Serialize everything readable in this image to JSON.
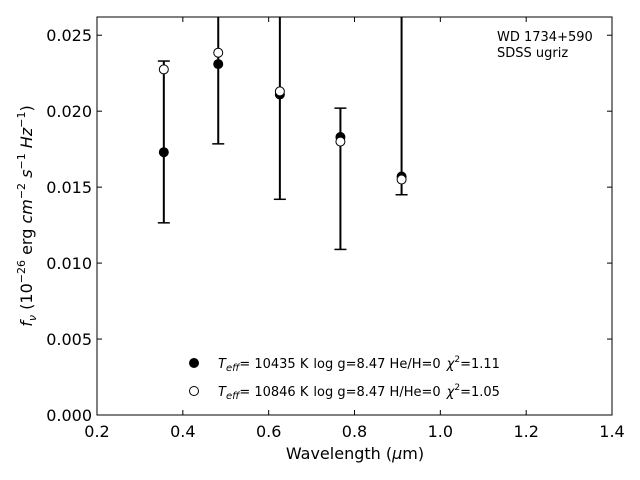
{
  "chart_data": {
    "type": "scatter",
    "title": "",
    "xlabel": "Wavelength (μm)",
    "ylabel": "f_ν (10^-26 erg cm^-2 s^-1 Hz^-1)",
    "xlim": [
      0.2,
      1.4
    ],
    "ylim": [
      0.0,
      0.0262
    ],
    "x_ticks": [
      "0.2",
      "0.4",
      "0.6",
      "0.8",
      "1.0",
      "1.2",
      "1.4"
    ],
    "y_ticks": [
      "0.000",
      "0.005",
      "0.010",
      "0.015",
      "0.020",
      "0.025"
    ],
    "grid": false,
    "annotation": [
      "WD 1734+590",
      "SDSS ugriz"
    ],
    "observed": {
      "x": [
        0.3557,
        0.4825,
        0.6261,
        0.7672,
        0.9097
      ],
      "y": [
        0.02275,
        0.02385,
        0.0212,
        0.018,
        0.0155
      ],
      "yerr_low": [
        0.01265,
        0.01785,
        0.0142,
        0.0109,
        0.0145
      ],
      "yerr_high": [
        0.0233,
        0.0262,
        0.0262,
        0.0202,
        0.0262
      ]
    },
    "series": [
      {
        "name": "T_eff= 10435 K  log g=8.47  He/H=0  χ²=1.11",
        "marker": "filled-circle",
        "x": [
          0.3557,
          0.4825,
          0.6261,
          0.7672,
          0.9097
        ],
        "y": [
          0.0173,
          0.0231,
          0.0211,
          0.0183,
          0.0157
        ]
      },
      {
        "name": "T_eff= 10846 K  log g=8.47  H/He=0  χ²=1.05",
        "marker": "open-circle",
        "x": [
          0.3557,
          0.4825,
          0.6261,
          0.7672,
          0.9097
        ],
        "y": [
          0.02275,
          0.02385,
          0.0213,
          0.018,
          0.0155
        ]
      }
    ],
    "legend": {
      "placement": "lower-center",
      "entries": [
        {
          "teff": "= 10435 K",
          "rest": "log g=8.47  He/H=0",
          "chi_val": "=1.11"
        },
        {
          "teff": "= 10846 K",
          "rest": "log g=8.47  H/He=0",
          "chi_val": "=1.05"
        }
      ]
    }
  }
}
